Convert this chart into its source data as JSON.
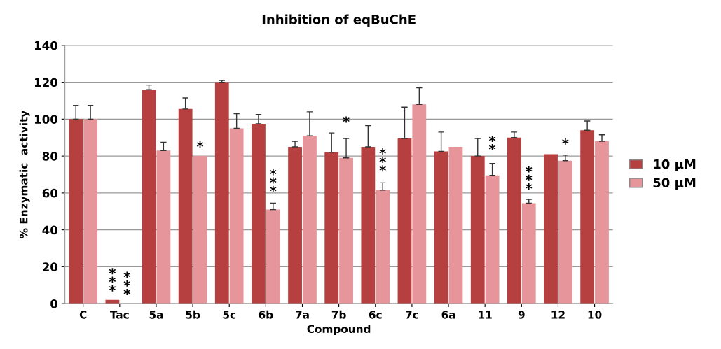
{
  "chart_data": {
    "type": "bar",
    "title": "Inhibition of eqBuChE",
    "xlabel": "Compound",
    "ylabel": "% Enzymatic  activity",
    "categories": [
      "C",
      "Tac",
      "5a",
      "5b",
      "5c",
      "6b",
      "7a",
      "7b",
      "6c",
      "7c",
      "6a",
      "11",
      "9",
      "12",
      "10"
    ],
    "series": [
      {
        "name": "10 μM",
        "color": "#b5403f",
        "values": [
          100,
          2,
          116,
          105.5,
          120,
          97.5,
          85,
          82,
          85,
          89.5,
          82.5,
          80,
          90,
          81,
          94
        ],
        "errors": [
          7.5,
          null,
          2.5,
          6,
          1,
          5,
          3,
          10.5,
          11.5,
          17,
          10.5,
          9.5,
          3,
          null,
          5
        ]
      },
      {
        "name": "50 μM",
        "color": "#e6959a",
        "values": [
          100,
          0,
          83,
          80,
          95,
          51,
          91,
          79,
          61.5,
          108,
          85,
          69.5,
          54.5,
          77.5,
          88
        ],
        "errors": [
          7.5,
          null,
          4.5,
          null,
          8,
          3.5,
          13,
          10.5,
          4,
          9,
          null,
          6.5,
          2,
          3,
          3.5
        ]
      }
    ],
    "ylim": [
      0,
      140
    ],
    "yticks": [
      0,
      20,
      40,
      60,
      80,
      100,
      120,
      140
    ],
    "grid": "y",
    "legend": "right",
    "annotations": [
      {
        "text": "***",
        "x": "Tac",
        "y": 2
      },
      {
        "text": "***",
        "x": "Tac",
        "y": 0
      },
      {
        "text": "*",
        "x": "5b",
        "y": 80
      },
      {
        "text": "***",
        "x": "6b",
        "y": 51
      },
      {
        "text": "*",
        "x": "7b",
        "y": 79
      },
      {
        "text": "***",
        "x": "6c",
        "y": 61.5
      },
      {
        "text": "**",
        "x": "11",
        "y": 69.5
      },
      {
        "text": "***",
        "x": "9",
        "y": 54.5
      },
      {
        "text": "*",
        "x": "12",
        "y": 77.5
      }
    ]
  }
}
